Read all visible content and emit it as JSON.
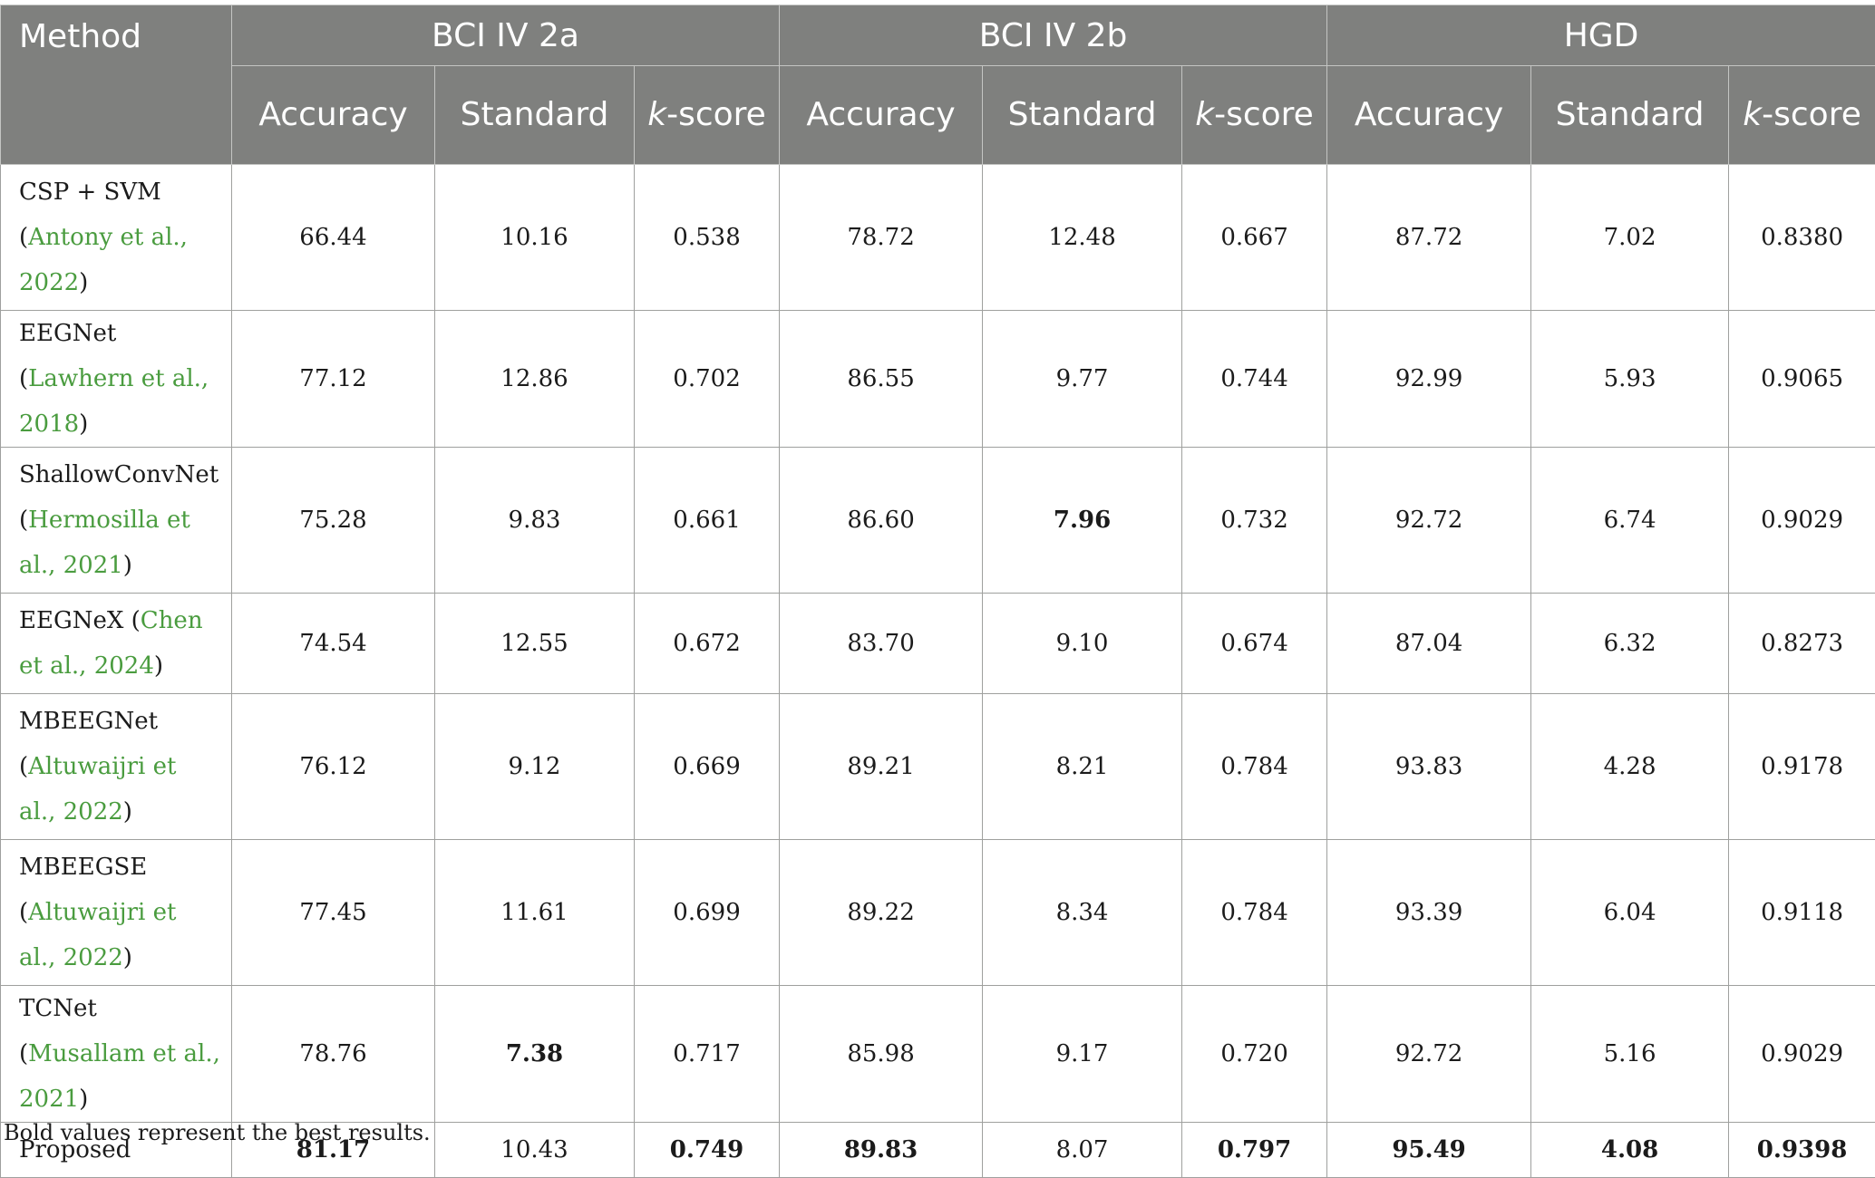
{
  "header": {
    "method": "Method",
    "groups": [
      "BCI IV 2a",
      "BCI IV 2b",
      "HGD"
    ],
    "sub": {
      "accuracy": "Accuracy",
      "standard": "Standard",
      "k": "k",
      "score": "-score"
    }
  },
  "rows": [
    {
      "name": "CSP + SVM",
      "open": "(",
      "cite": "Antony et al., 2022",
      "close": ")",
      "values": [
        "66.44",
        "10.16",
        "0.538",
        "78.72",
        "12.48",
        "0.667",
        "87.72",
        "7.02",
        "0.8380"
      ]
    },
    {
      "name": "EEGNet ",
      "open": "(",
      "cite": "Lawhern et al., 2018",
      "close": ")",
      "values": [
        "77.12",
        "12.86",
        "0.702",
        "86.55",
        "9.77",
        "0.744",
        "92.99",
        "5.93",
        "0.9065"
      ]
    },
    {
      "name": "ShallowConvNet",
      "open": "(",
      "cite": "Hermosilla et al., 2021",
      "close": ")",
      "values": [
        "75.28",
        "9.83",
        "0.661",
        "86.60",
        "7.96",
        "0.732",
        "92.72",
        "6.74",
        "0.9029"
      ]
    },
    {
      "name": "EEGNeX ",
      "open": "(",
      "cite": "Chen et al., 2024",
      "close": ")",
      "values": [
        "74.54",
        "12.55",
        "0.672",
        "83.70",
        "9.10",
        "0.674",
        "87.04",
        "6.32",
        "0.8273"
      ]
    },
    {
      "name": "MBEEGNet",
      "open": "(",
      "cite": "Altuwaijri et al., 2022",
      "close": ")",
      "values": [
        "76.12",
        "9.12",
        "0.669",
        "89.21",
        "8.21",
        "0.784",
        "93.83",
        "4.28",
        "0.9178"
      ]
    },
    {
      "name": "MBEEGSE",
      "open": "(",
      "cite": "Altuwaijri et al., 2022",
      "close": ")",
      "values": [
        "77.45",
        "11.61",
        "0.699",
        "89.22",
        "8.34",
        "0.784",
        "93.39",
        "6.04",
        "0.9118"
      ]
    },
    {
      "name": "TCNet ",
      "open": "(",
      "cite": "Musallam et al., 2021",
      "close": ")",
      "values": [
        "78.76",
        "7.38",
        "0.717",
        "85.98",
        "9.17",
        "0.720",
        "92.72",
        "5.16",
        "0.9029"
      ]
    },
    {
      "name": "Proposed",
      "values": [
        "81.17",
        "10.43",
        "0.749",
        "89.83",
        "8.07",
        "0.797",
        "95.49",
        "4.08",
        "0.9398"
      ]
    }
  ],
  "footnote": "Bold values represent the best results.",
  "colors": {
    "header_bg": "#7f807e",
    "header_text": "#ffffff",
    "citation": "#4a9c3f",
    "grid": "#9fa09e"
  }
}
